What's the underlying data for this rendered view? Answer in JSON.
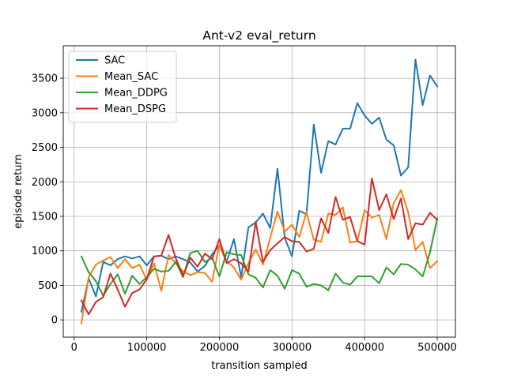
{
  "chart_data": {
    "type": "line",
    "title": "Ant-v2 eval_return",
    "xlabel": "transition sampled",
    "ylabel": "episode return",
    "xlim": [
      -15000,
      525000
    ],
    "ylim": [
      -250,
      3970
    ],
    "xticks": [
      0,
      100000,
      200000,
      300000,
      400000,
      500000
    ],
    "yticks": [
      0,
      500,
      1000,
      1500,
      2000,
      2500,
      3000,
      3500
    ],
    "grid": true,
    "legend_position": "upper-left",
    "x": [
      10000,
      20000,
      30000,
      40000,
      50000,
      60000,
      70000,
      80000,
      90000,
      100000,
      110000,
      120000,
      130000,
      140000,
      150000,
      160000,
      170000,
      180000,
      190000,
      200000,
      210000,
      220000,
      230000,
      240000,
      250000,
      260000,
      270000,
      280000,
      290000,
      300000,
      310000,
      320000,
      330000,
      340000,
      350000,
      360000,
      370000,
      380000,
      390000,
      400000,
      410000,
      420000,
      430000,
      440000,
      450000,
      460000,
      470000,
      480000,
      490000,
      500000
    ],
    "series": [
      {
        "name": "SAC",
        "color": "#1f77b4",
        "values": [
          120,
          600,
          340,
          840,
          790,
          880,
          920,
          890,
          920,
          790,
          920,
          930,
          880,
          920,
          880,
          830,
          700,
          780,
          950,
          1080,
          840,
          1170,
          620,
          1340,
          1410,
          1540,
          1330,
          2190,
          1190,
          920,
          1580,
          1530,
          2830,
          2130,
          2590,
          2540,
          2770,
          2770,
          3140,
          2960,
          2840,
          2930,
          2610,
          2530,
          2090,
          2210,
          3770,
          3110,
          3540,
          3380
        ]
      },
      {
        "name": "Mean_SAC",
        "color": "#ff7f0e",
        "values": [
          -50,
          620,
          800,
          860,
          910,
          750,
          880,
          750,
          800,
          580,
          820,
          420,
          940,
          820,
          700,
          650,
          690,
          680,
          550,
          1090,
          850,
          760,
          580,
          820,
          1020,
          800,
          1190,
          1570,
          1280,
          1380,
          1200,
          1560,
          1160,
          1130,
          1540,
          1520,
          1630,
          1120,
          1140,
          1590,
          1480,
          1520,
          1170,
          1690,
          1880,
          1560,
          1010,
          1130,
          750,
          850
        ]
      },
      {
        "name": "Mean_DDPG",
        "color": "#2ca02c",
        "values": [
          920,
          690,
          560,
          350,
          520,
          660,
          380,
          640,
          520,
          620,
          740,
          700,
          710,
          840,
          620,
          970,
          1000,
          840,
          900,
          630,
          980,
          950,
          940,
          660,
          610,
          470,
          720,
          640,
          450,
          720,
          670,
          480,
          520,
          500,
          430,
          670,
          540,
          510,
          630,
          630,
          630,
          530,
          760,
          660,
          810,
          800,
          730,
          630,
          980,
          1470
        ]
      },
      {
        "name": "Mean_DSPG",
        "color": "#d62728",
        "values": [
          280,
          80,
          260,
          330,
          670,
          440,
          190,
          390,
          440,
          590,
          920,
          930,
          1230,
          890,
          640,
          900,
          770,
          960,
          880,
          1170,
          820,
          880,
          820,
          700,
          1420,
          840,
          1010,
          1110,
          1200,
          1140,
          1130,
          990,
          1030,
          1470,
          1260,
          1780,
          1450,
          1490,
          1140,
          1090,
          2050,
          1590,
          1820,
          1460,
          1760,
          1170,
          1400,
          1380,
          1550,
          1450
        ]
      }
    ]
  }
}
